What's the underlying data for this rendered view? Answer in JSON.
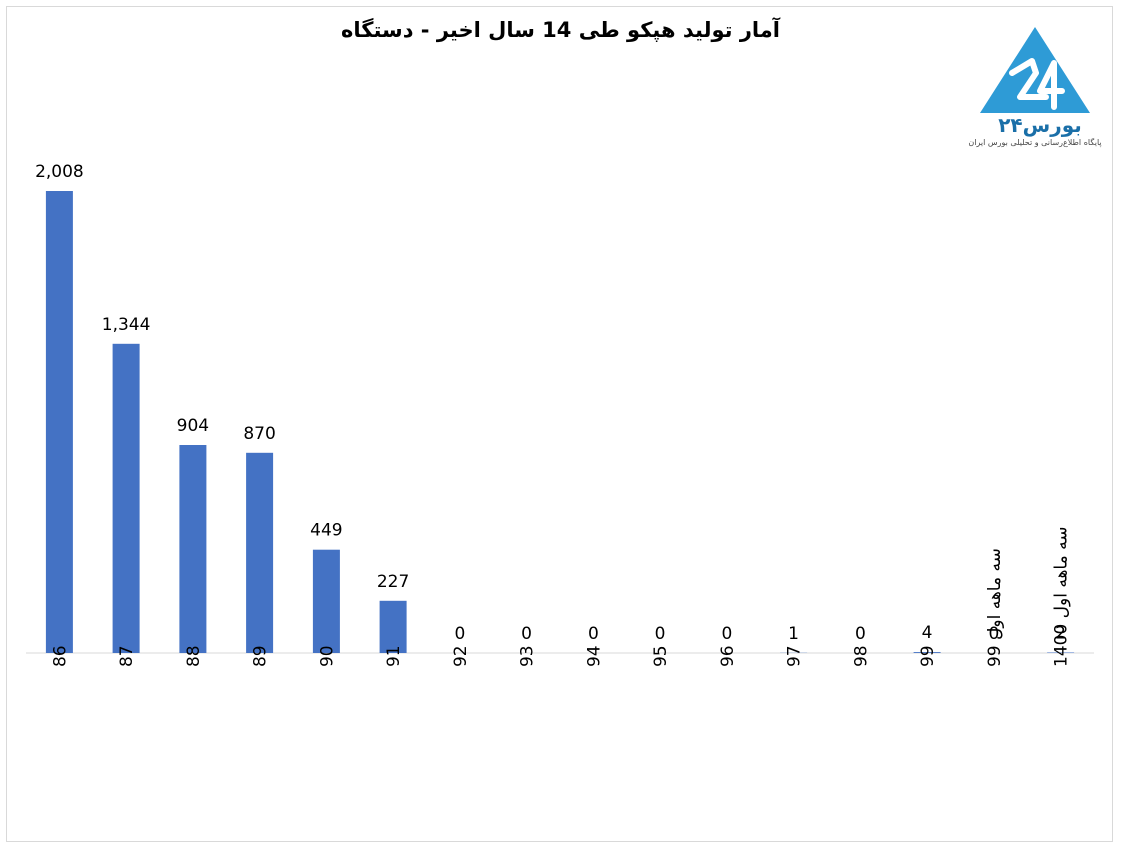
{
  "chart_data": {
    "type": "bar",
    "title": "آمار تولید هپکو طی 14 سال اخیر - دستگاه",
    "categories": [
      "86",
      "87",
      "88",
      "89",
      "90",
      "91",
      "92",
      "93",
      "94",
      "95",
      "96",
      "97",
      "98",
      "99",
      "سه ماهه اول 99",
      "سه ماهه اول 1400"
    ],
    "values": [
      2008,
      1344,
      904,
      870,
      449,
      227,
      0,
      0,
      0,
      0,
      0,
      1,
      0,
      4,
      0,
      2
    ],
    "data_labels": [
      "2,008",
      "1,344",
      "904",
      "870",
      "449",
      "227",
      "0",
      "0",
      "0",
      "0",
      "0",
      "1",
      "0",
      "4",
      "0",
      "2"
    ],
    "xlabel": "",
    "ylabel": "",
    "ylim": [
      0,
      2008
    ],
    "grid": false,
    "legend": "none",
    "bar_color": "#4472c4"
  },
  "logo": {
    "brand": "بورس۲۴",
    "tagline": "پایگاه اطلاع‌رسانی و تحلیلی بورس ایران",
    "color": "#2e9bd6"
  }
}
